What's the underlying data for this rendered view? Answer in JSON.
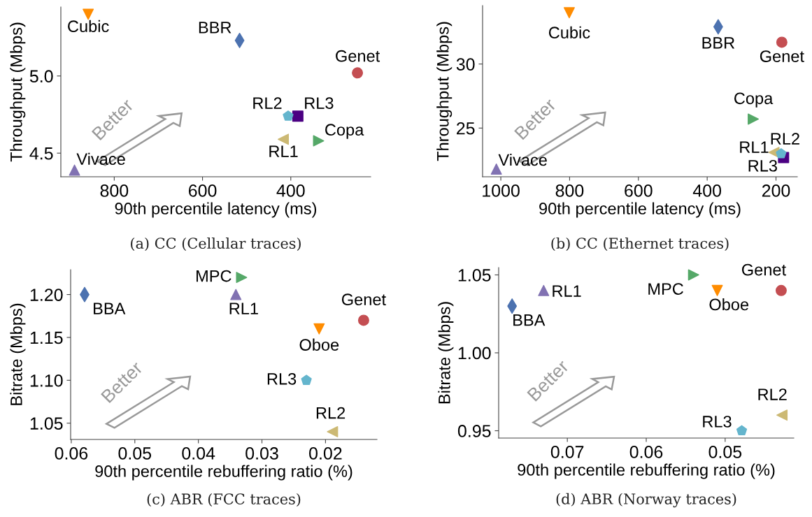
{
  "chart_data": [
    {
      "type": "scatter",
      "title": "(a) CC (Cellular traces)",
      "xlabel": "90th percentile latency (ms)",
      "ylabel": "Throughput (Mbps)",
      "annotations": [
        "Better"
      ],
      "xlim": [
        921,
        219
      ],
      "ylim": [
        4.347,
        5.447
      ],
      "xticks": [
        800,
        600,
        400
      ],
      "yticks": [
        4.5,
        {
          "value": 5.0,
          "label": "5.0"
        }
      ],
      "grid": false,
      "legend": false,
      "series": [
        {
          "name": "Genet",
          "color": "#c44e52",
          "marker": "circle",
          "x": [
            249
          ],
          "values": [
            5.02
          ]
        },
        {
          "name": "BBR",
          "color": "#4c72b0",
          "marker": "diamond",
          "x": [
            516
          ],
          "values": [
            5.23
          ]
        },
        {
          "name": "Cubic",
          "color": "#ff8c00",
          "marker": "triangle_down",
          "x": [
            859
          ],
          "values": [
            5.4
          ]
        },
        {
          "name": "Copa",
          "color": "#55a868",
          "marker": "triangle_right",
          "x": [
            337
          ],
          "values": [
            4.58
          ]
        },
        {
          "name": "Vivace",
          "color": "#8172b2",
          "marker": "triangle",
          "x": [
            890
          ],
          "values": [
            4.39
          ]
        },
        {
          "name": "RL1",
          "color": "#ccb974",
          "marker": "triangle_left",
          "x": [
            417
          ],
          "values": [
            4.59
          ]
        },
        {
          "name": "RL2",
          "color": "#64b5cd",
          "x": [
            406
          ],
          "values": [
            4.74
          ]
        },
        {
          "name": "RL3",
          "color": "#4b0082",
          "marker": "square",
          "x": [
            384
          ],
          "values": [
            4.74
          ]
        }
      ]
    },
    {
      "type": "scatter",
      "title": "(b) CC (Ethernet traces)",
      "xlabel": "90th percentile latency (ms)",
      "ylabel": "Throughput (Mbps)",
      "annotations": [
        "Better"
      ],
      "xlim": [
        1053,
        138
      ],
      "ylim": [
        21.2,
        34.56
      ],
      "xticks": [
        1000,
        800,
        600,
        400,
        200
      ],
      "yticks": [
        25,
        30
      ],
      "grid": false,
      "legend": false,
      "series": [
        {
          "name": "Genet",
          "color": "#c44e52",
          "marker": "circle",
          "x": [
            183
          ],
          "values": [
            31.7
          ]
        },
        {
          "name": "BBR",
          "color": "#4c72b0",
          "marker": "diamond",
          "x": [
            368
          ],
          "values": [
            32.9
          ]
        },
        {
          "name": "Cubic",
          "color": "#ff8c00",
          "marker": "triangle_down",
          "x": [
            801
          ],
          "values": [
            34.0
          ]
        },
        {
          "name": "Copa",
          "color": "#55a868",
          "marker": "triangle_right",
          "x": [
            266
          ],
          "values": [
            25.7
          ]
        },
        {
          "name": "Vivace",
          "color": "#8172b2",
          "marker": "triangle",
          "x": [
            1013
          ],
          "values": [
            21.8
          ]
        },
        {
          "name": "RL1",
          "color": "#ccb974",
          "marker": "triangle_left",
          "x": [
            206
          ],
          "values": [
            23.1
          ]
        },
        {
          "name": "RL2",
          "color": "#64b5cd",
          "x": [
            185
          ],
          "values": [
            23.0
          ]
        },
        {
          "name": "RL3",
          "color": "#4b0082",
          "marker": "square",
          "x": [
            178
          ],
          "values": [
            22.7
          ]
        }
      ]
    },
    {
      "type": "scatter",
      "title": "(c) ABR (FCC traces)",
      "xlabel": "90th percentile rebuffering ratio (%)",
      "ylabel": "Bitrate (Mbps)",
      "annotations": [
        "Better"
      ],
      "xlim": [
        0.0601,
        0.0119
      ],
      "ylim": [
        1.031,
        1.229
      ],
      "xticks": [
        {
          "value": 0.06,
          "label": "0.06"
        },
        {
          "value": 0.05,
          "label": "0.05"
        },
        {
          "value": 0.04,
          "label": "0.04"
        },
        {
          "value": 0.03,
          "label": "0.03"
        },
        {
          "value": 0.02,
          "label": "0.02"
        }
      ],
      "yticks": [
        {
          "value": 1.05,
          "label": "1.05"
        },
        {
          "value": 1.1,
          "label": "1.10"
        },
        {
          "value": 1.15,
          "label": "1.15"
        },
        {
          "value": 1.2,
          "label": "1.20"
        }
      ],
      "grid": false,
      "legend": false,
      "series": [
        {
          "name": "Genet",
          "color": "#c44e52",
          "marker": "circle",
          "x": [
            0.014
          ],
          "values": [
            1.17
          ]
        },
        {
          "name": "BBA",
          "color": "#4c72b0",
          "marker": "diamond",
          "x": [
            0.0579
          ],
          "values": [
            1.2
          ]
        },
        {
          "name": "Oboe",
          "color": "#ff8c00",
          "marker": "triangle_down",
          "x": [
            0.021
          ],
          "values": [
            1.16
          ]
        },
        {
          "name": "MPC",
          "color": "#55a868",
          "marker": "triangle_right",
          "x": [
            0.0332
          ],
          "values": [
            1.22
          ]
        },
        {
          "name": "RL1",
          "color": "#8172b2",
          "marker": "triangle",
          "x": [
            0.0341
          ],
          "values": [
            1.2
          ]
        },
        {
          "name": "RL2",
          "color": "#ccb974",
          "marker": "triangle_left",
          "x": [
            0.0189
          ],
          "values": [
            1.04
          ]
        },
        {
          "name": "RL3",
          "color": "#64b5cd",
          "x": [
            0.023
          ],
          "values": [
            1.1
          ]
        }
      ]
    },
    {
      "type": "scatter",
      "title": "(d) ABR (Norway traces)",
      "xlabel": "90th percentile rebuffering ratio (%)",
      "ylabel": "Bitrate (Mbps)",
      "annotations": [
        "Better"
      ],
      "xlim": [
        0.0787,
        0.0413
      ],
      "ylim": [
        0.9453,
        1.0547
      ],
      "xticks": [
        {
          "value": 0.07,
          "label": "0.07"
        },
        {
          "value": 0.06,
          "label": "0.06"
        },
        {
          "value": 0.05,
          "label": "0.05"
        }
      ],
      "yticks": [
        {
          "value": 0.95,
          "label": "0.95"
        },
        {
          "value": 1.0,
          "label": "1.00"
        },
        {
          "value": 1.05,
          "label": "1.05"
        }
      ],
      "grid": false,
      "legend": false,
      "series": [
        {
          "name": "Genet",
          "color": "#c44e52",
          "marker": "circle",
          "x": [
            0.0429
          ],
          "values": [
            1.04
          ]
        },
        {
          "name": "BBA",
          "color": "#4c72b0",
          "marker": "diamond",
          "x": [
            0.077
          ],
          "values": [
            1.03
          ]
        },
        {
          "name": "Oboe",
          "color": "#ff8c00",
          "marker": "triangle_down",
          "x": [
            0.051
          ],
          "values": [
            1.04
          ]
        },
        {
          "name": "MPC",
          "color": "#55a868",
          "marker": "triangle_right",
          "x": [
            0.054
          ],
          "values": [
            1.05
          ]
        },
        {
          "name": "RL1",
          "color": "#8172b2",
          "marker": "triangle",
          "x": [
            0.073
          ],
          "values": [
            1.04
          ]
        },
        {
          "name": "RL2",
          "color": "#ccb974",
          "marker": "triangle_left",
          "x": [
            0.0428
          ],
          "values": [
            0.96
          ]
        },
        {
          "name": "RL3",
          "color": "#64b5cd",
          "x": [
            0.0479
          ],
          "values": [
            0.95
          ]
        }
      ]
    }
  ]
}
